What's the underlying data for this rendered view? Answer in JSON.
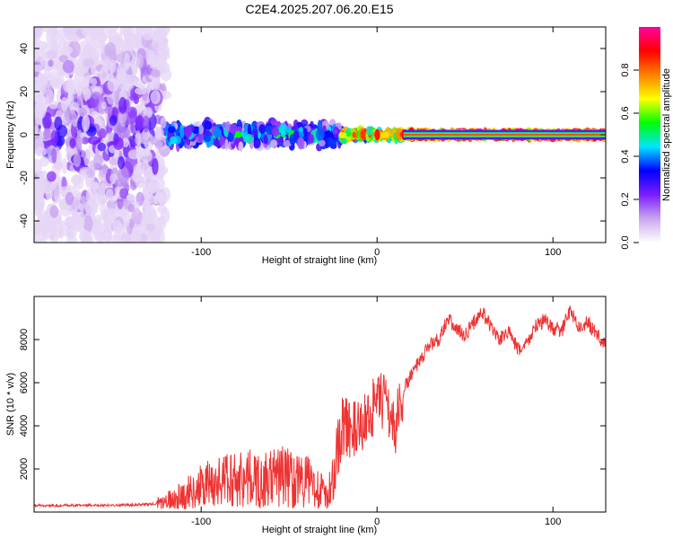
{
  "title": "C2E4.2025.207.06.20.E15",
  "chart_data": [
    {
      "type": "heatmap",
      "xlabel": "Height of straight line (km)",
      "ylabel": "Frequency (Hz)",
      "xlim": [
        -195,
        130
      ],
      "ylim": [
        -50,
        50
      ],
      "xticks": [
        -100,
        0,
        100
      ],
      "xtick_labels": [
        "-100",
        "0",
        "100"
      ],
      "yticks": [
        -40,
        -20,
        0,
        20,
        40
      ],
      "ytick_labels": [
        "-40",
        "-20",
        "0",
        "20",
        "40"
      ],
      "colorbar": {
        "label": "Normalized spectral amplitude",
        "range": [
          0,
          1
        ],
        "ticks": [
          0,
          0.2,
          0.4,
          0.6,
          0.8
        ],
        "tick_labels": [
          "0.0",
          "0.2",
          "0.4",
          "0.6",
          "0.8"
        ],
        "colors": [
          "#ffffff",
          "#c9a6ee",
          "#7a1cff",
          "#0000ff",
          "#00e5ff",
          "#00ff00",
          "#ffff00",
          "#ff8000",
          "#ff0000",
          "#ff00a0"
        ]
      },
      "regions": [
        {
          "x": [
            -195,
            -120
          ],
          "freq_spread": 50,
          "amplitude": 0.15
        },
        {
          "x": [
            -120,
            -20
          ],
          "freq_spread": 6,
          "amplitude": 0.4
        },
        {
          "x": [
            -20,
            15
          ],
          "freq_spread": 2,
          "amplitude": 0.75
        },
        {
          "x": [
            15,
            130
          ],
          "freq_spread": 1,
          "amplitude": 0.9
        }
      ],
      "grid": false
    },
    {
      "type": "line",
      "xlabel": "Height of straight line (km)",
      "ylabel": "SNR (10 * v/v)",
      "xlim": [
        -195,
        130
      ],
      "ylim": [
        0,
        10000
      ],
      "xticks": [
        -100,
        0,
        100
      ],
      "xtick_labels": [
        "-100",
        "0",
        "100"
      ],
      "yticks": [
        2000,
        4000,
        6000,
        8000
      ],
      "ytick_labels": [
        "2000",
        "4000",
        "6000",
        "8000"
      ],
      "color": "#ee3333",
      "grid": false,
      "series": [
        {
          "x": [
            -195,
            -180,
            -160,
            -140,
            -125,
            -115,
            -105,
            -95,
            -85,
            -75,
            -65,
            -55,
            -45,
            -35,
            -28,
            -24,
            -20,
            -15,
            -10,
            -5,
            0,
            5,
            10,
            15,
            20,
            25,
            30,
            35,
            40,
            45,
            50,
            55,
            60,
            65,
            70,
            75,
            80,
            85,
            90,
            95,
            100,
            105,
            110,
            115,
            120,
            125,
            130
          ],
          "values": [
            300,
            300,
            320,
            330,
            380,
            600,
            1000,
            1300,
            1500,
            1600,
            1400,
            1700,
            1500,
            1300,
            600,
            2200,
            4000,
            3900,
            3700,
            4600,
            5000,
            5200,
            3800,
            5600,
            6500,
            7000,
            7800,
            8000,
            9000,
            8500,
            8200,
            8800,
            9300,
            8500,
            8000,
            8400,
            7500,
            7800,
            8600,
            8900,
            8500,
            8400,
            9400,
            8500,
            8800,
            8200,
            7800
          ]
        }
      ]
    }
  ]
}
